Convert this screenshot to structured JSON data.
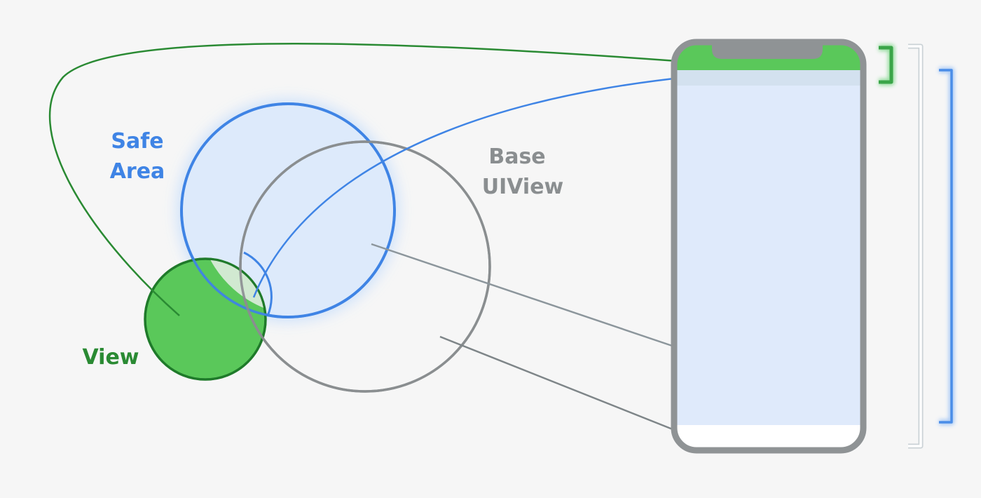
{
  "labels": {
    "safe_area_line1": "Safe",
    "safe_area_line2": "Area",
    "base_uiview_line1": "Base",
    "base_uiview_line2": "UIView",
    "view": "View"
  },
  "colors": {
    "background": "#f6f6f6",
    "view_green": "#5ac85a",
    "view_green_dark": "#1f7a2a",
    "safe_area_blue": "#3f84e5",
    "safe_area_fill": "#ddeafb",
    "base_gray": "#8a8e90",
    "phone_frame": "#8f9395",
    "bracket_white": "#ffffff"
  }
}
